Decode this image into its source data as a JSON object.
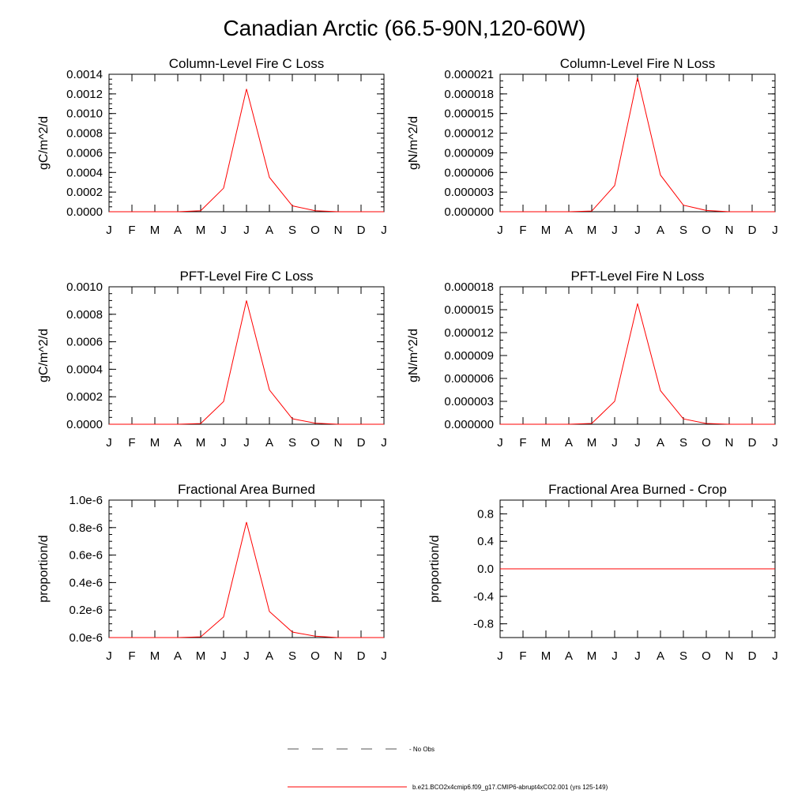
{
  "title": "Canadian Arctic (66.5-90N,120-60W)",
  "months": [
    "J",
    "F",
    "M",
    "A",
    "M",
    "J",
    "J",
    "A",
    "S",
    "O",
    "N",
    "D",
    "J"
  ],
  "legend": {
    "entries": [
      {
        "label": "No Obs",
        "style": "dashed",
        "color": "#555555"
      },
      {
        "label": "b.e21.BCO2x4cmip6.f09_g17.CMIP6-abrupt4xCO2.001 (yrs 125-149)",
        "style": "solid",
        "color": "#ff0000"
      }
    ]
  },
  "chart_data": [
    {
      "type": "line",
      "title": "Column-Level Fire C Loss",
      "ylabel": "gC/m^2/d",
      "xlabel": "",
      "ylim": [
        0,
        0.0014
      ],
      "yticks": [
        0,
        0.0002,
        0.0004,
        0.0006,
        0.0008,
        0.001,
        0.0012,
        0.0014
      ],
      "ytick_labels": [
        "0.0000",
        "0.0002",
        "0.0004",
        "0.0006",
        "0.0008",
        "0.0010",
        "0.0012",
        "0.0014"
      ],
      "minor_step": 5e-05,
      "series": [
        {
          "name": "b.e21.BCO2x4cmip6.f09_g17.CMIP6-abrupt4xCO2.001 (yrs 125-149)",
          "color": "#ff0000",
          "values": [
            0,
            0,
            0,
            0,
            1e-05,
            0.00024,
            0.00125,
            0.00035,
            6e-05,
            1e-05,
            0,
            0,
            0
          ]
        }
      ]
    },
    {
      "type": "line",
      "title": "Column-Level Fire N Loss",
      "ylabel": "gN/m^2/d",
      "xlabel": "",
      "ylim": [
        0,
        2.1e-05
      ],
      "yticks": [
        0,
        3e-06,
        6e-06,
        9e-06,
        1.2e-05,
        1.5e-05,
        1.8e-05,
        2.1e-05
      ],
      "ytick_labels": [
        "0.000000",
        "0.000003",
        "0.000006",
        "0.000009",
        "0.000012",
        "0.000015",
        "0.000018",
        "0.000021"
      ],
      "minor_step": 1e-06,
      "series": [
        {
          "name": "b.e21.BCO2x4cmip6.f09_g17.CMIP6-abrupt4xCO2.001 (yrs 125-149)",
          "color": "#ff0000",
          "values": [
            0,
            0,
            0,
            0,
            1e-07,
            4e-06,
            2.05e-05,
            5.6e-06,
            1e-06,
            2e-07,
            0,
            0,
            0
          ]
        }
      ]
    },
    {
      "type": "line",
      "title": "PFT-Level Fire C Loss",
      "ylabel": "gC/m^2/d",
      "xlabel": "",
      "ylim": [
        0,
        0.001
      ],
      "yticks": [
        0,
        0.0002,
        0.0004,
        0.0006,
        0.0008,
        0.001
      ],
      "ytick_labels": [
        "0.0000",
        "0.0002",
        "0.0004",
        "0.0006",
        "0.0008",
        "0.0010"
      ],
      "minor_step": 5e-05,
      "series": [
        {
          "name": "b.e21.BCO2x4cmip6.f09_g17.CMIP6-abrupt4xCO2.001 (yrs 125-149)",
          "color": "#ff0000",
          "values": [
            0,
            0,
            0,
            0,
            5e-06,
            0.000165,
            0.0009,
            0.00025,
            4e-05,
            8e-06,
            0,
            0,
            0
          ]
        }
      ]
    },
    {
      "type": "line",
      "title": "PFT-Level Fire N Loss",
      "ylabel": "gN/m^2/d",
      "xlabel": "",
      "ylim": [
        0,
        1.8e-05
      ],
      "yticks": [
        0,
        3e-06,
        6e-06,
        9e-06,
        1.2e-05,
        1.5e-05,
        1.8e-05
      ],
      "ytick_labels": [
        "0.000000",
        "0.000003",
        "0.000006",
        "0.000009",
        "0.000012",
        "0.000015",
        "0.000018"
      ],
      "minor_step": 1e-06,
      "series": [
        {
          "name": "b.e21.BCO2x4cmip6.f09_g17.CMIP6-abrupt4xCO2.001 (yrs 125-149)",
          "color": "#ff0000",
          "values": [
            0,
            0,
            0,
            0,
            1e-07,
            3e-06,
            1.58e-05,
            4.4e-06,
            7e-07,
            1e-07,
            0,
            0,
            0
          ]
        }
      ]
    },
    {
      "type": "line",
      "title": "Fractional Area Burned",
      "ylabel": "proportion/d",
      "xlabel": "",
      "ylim": [
        0,
        1e-06
      ],
      "yticks": [
        0,
        2e-07,
        4e-07,
        6e-07,
        8e-07,
        1e-06
      ],
      "ytick_labels": [
        "0.0e-6",
        "0.2e-6",
        "0.4e-6",
        "0.6e-6",
        "0.8e-6",
        "1.0e-6"
      ],
      "minor_step": 5e-08,
      "series": [
        {
          "name": "b.e21.BCO2x4cmip6.f09_g17.CMIP6-abrupt4xCO2.001 (yrs 125-149)",
          "color": "#ff0000",
          "values": [
            0,
            0,
            0,
            0,
            5e-09,
            1.5e-07,
            8.4e-07,
            1.9e-07,
            4e-08,
            1e-08,
            0,
            0,
            0
          ]
        }
      ]
    },
    {
      "type": "line",
      "title": "Fractional Area Burned - Crop",
      "ylabel": "proportion/d",
      "xlabel": "",
      "ylim": [
        -1,
        1
      ],
      "yticks": [
        -0.8,
        -0.4,
        0,
        0.4,
        0.8
      ],
      "ytick_labels": [
        "-0.8",
        "-0.4",
        "0.0",
        "0.4",
        "0.8"
      ],
      "minor_step": 0.1,
      "series": [
        {
          "name": "b.e21.BCO2x4cmip6.f09_g17.CMIP6-abrupt4xCO2.001 (yrs 125-149)",
          "color": "#ff0000",
          "values": [
            0,
            0,
            0,
            0,
            0,
            0,
            0,
            0,
            0,
            0,
            0,
            0,
            0
          ]
        }
      ]
    }
  ]
}
